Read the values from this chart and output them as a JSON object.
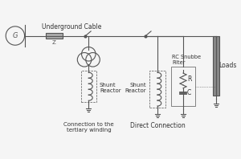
{
  "bg_color": "#f5f5f5",
  "line_color": "#555555",
  "labels": {
    "underground_cable": "Underground Cable",
    "Z": "Z",
    "shunt_reactor_left": "Shunt\nReactor",
    "connection_left": "Connection to the\ntertiary winding",
    "shunt_reactor_right": "Shunt\nReactor",
    "rc_snubber": "RC Snubbe\nFilter",
    "direct_connection": "Direct Connection",
    "loads": "Loads",
    "R": "R",
    "C": "C",
    "G": "G"
  },
  "figsize": [
    3.0,
    1.98
  ],
  "dpi": 100
}
